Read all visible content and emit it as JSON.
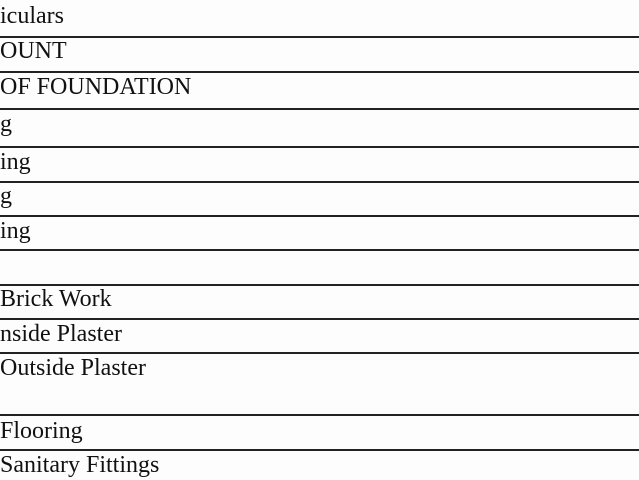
{
  "table": {
    "rows": [
      {
        "label": "iculars"
      },
      {
        "label": "OUNT"
      },
      {
        "label": "OF FOUNDATION"
      },
      {
        "label": "g"
      },
      {
        "label": "ing"
      },
      {
        "label": "g"
      },
      {
        "label": "ing"
      },
      {
        "label": ""
      },
      {
        "label": "Brick Work"
      },
      {
        "label": "nside Plaster"
      },
      {
        "label": "Outside Plaster"
      },
      {
        "label": "Flooring"
      },
      {
        "label": "Sanitary Fittings"
      }
    ]
  }
}
